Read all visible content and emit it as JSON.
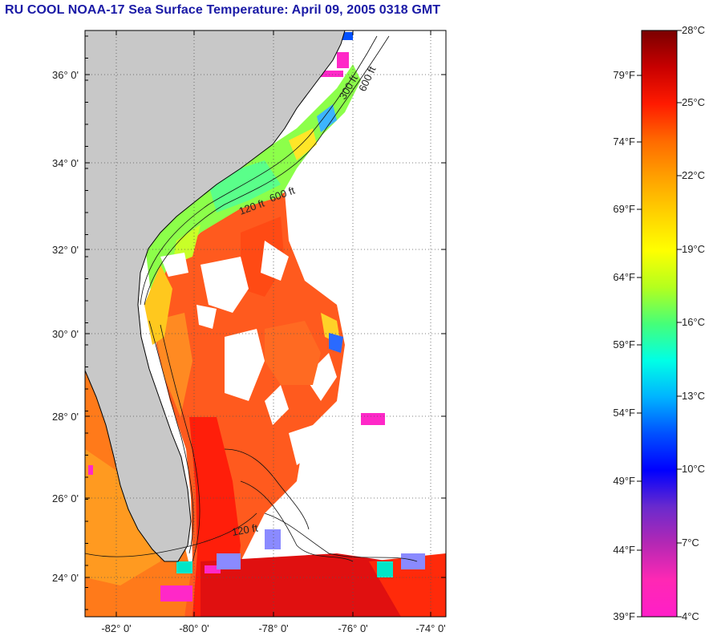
{
  "title": "RU COOL  NOAA-17  Sea Surface Temperature:  April 09, 2005 0318 GMT",
  "map": {
    "lat_labels": [
      "36° 0'",
      "34° 0'",
      "32° 0'",
      "30° 0'",
      "28° 0'",
      "26° 0'",
      "24° 0'"
    ],
    "lon_labels": [
      "-82° 0'",
      "-80° 0'",
      "-78° 0'",
      "-76° 0'",
      "-74° 0'"
    ],
    "contour_labels": [
      "120 ft",
      "600 ft",
      "300 ft",
      "120 ft",
      "600 ft"
    ]
  },
  "colorbar": {
    "celsius": [
      "28°C",
      "25°C",
      "22°C",
      "19°C",
      "16°C",
      "13°C",
      "10°C",
      "7°C",
      "4°C"
    ],
    "fahrenheit": [
      "79°F",
      "74°F",
      "69°F",
      "64°F",
      "59°F",
      "54°F",
      "49°F",
      "44°F",
      "39°F"
    ],
    "colors": [
      "#7a0000",
      "#c80000",
      "#ff1a00",
      "#ff6a00",
      "#ffa000",
      "#ffd200",
      "#ffff00",
      "#b4ff1e",
      "#46ff78",
      "#00ffe6",
      "#00b4ff",
      "#0050ff",
      "#0000ff",
      "#6a2acd",
      "#b428b4",
      "#ff28b4",
      "#ff1ec8"
    ]
  },
  "colors": {
    "land": "#c8c8c8",
    "no_data": "#ffffff",
    "title": "#1a1aa6"
  }
}
